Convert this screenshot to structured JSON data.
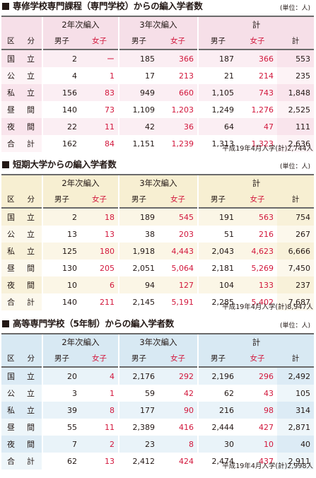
{
  "unit": "(単位：人)",
  "headers": {
    "group1": "2年次編入",
    "group2": "3年次編入",
    "group3": "計",
    "male": "男子",
    "female": "女子",
    "total": "計",
    "category_a": "区",
    "category_b": "分"
  },
  "row_labels": [
    [
      "国",
      "立"
    ],
    [
      "公",
      "立"
    ],
    [
      "私",
      "立"
    ],
    [
      "昼",
      "間"
    ],
    [
      "夜",
      "間"
    ],
    [
      "合",
      "計"
    ]
  ],
  "sections": [
    {
      "title": "専修学校専門課程（専門学校）からの編入学者数",
      "note": "平成19年4月入学(計)2,744人",
      "colors": {
        "h": "#f6dfe8",
        "c0": "#fbeef3",
        "c1": "#ffffff",
        "b0": "#f9e4ec",
        "b1": "#fdf3f6"
      },
      "rows": [
        [
          "2",
          "ー",
          "185",
          "366",
          "187",
          "366",
          "553"
        ],
        [
          "4",
          "1",
          "17",
          "213",
          "21",
          "214",
          "235"
        ],
        [
          "156",
          "83",
          "949",
          "660",
          "1,105",
          "743",
          "1,848"
        ],
        [
          "140",
          "73",
          "1,109",
          "1,203",
          "1,249",
          "1,276",
          "2,525"
        ],
        [
          "22",
          "11",
          "42",
          "36",
          "64",
          "47",
          "111"
        ],
        [
          "162",
          "84",
          "1,151",
          "1,239",
          "1,313",
          "1,323",
          "2,636"
        ]
      ]
    },
    {
      "title": "短期大学からの編入学者数",
      "note": "平成19年4月入学(計)8,947人",
      "colors": {
        "h": "#f7efd2",
        "c0": "#fbf6e6",
        "c1": "#ffffff",
        "b0": "#f8f1d9",
        "b1": "#fcf8ec"
      },
      "rows": [
        [
          "2",
          "18",
          "189",
          "545",
          "191",
          "563",
          "754"
        ],
        [
          "13",
          "13",
          "38",
          "203",
          "51",
          "216",
          "267"
        ],
        [
          "125",
          "180",
          "1,918",
          "4,443",
          "2,043",
          "4,623",
          "6,666"
        ],
        [
          "130",
          "205",
          "2,051",
          "5,064",
          "2,181",
          "5,269",
          "7,450"
        ],
        [
          "10",
          "6",
          "94",
          "127",
          "104",
          "133",
          "237"
        ],
        [
          "140",
          "211",
          "2,145",
          "5,191",
          "2,285",
          "5,402",
          "7,687"
        ]
      ]
    },
    {
      "title": "高等専門学校（5年制）からの編入学者数",
      "note": "平成19年4月入学(計)2,998人",
      "colors": {
        "h": "#d8e9f3",
        "c0": "#e9f3f9",
        "c1": "#ffffff",
        "b0": "#dcebf5",
        "b1": "#eef6fa"
      },
      "rows": [
        [
          "20",
          "4",
          "2,176",
          "292",
          "2,196",
          "296",
          "2,492"
        ],
        [
          "3",
          "1",
          "59",
          "42",
          "62",
          "43",
          "105"
        ],
        [
          "39",
          "8",
          "177",
          "90",
          "216",
          "98",
          "314"
        ],
        [
          "55",
          "11",
          "2,389",
          "416",
          "2,444",
          "427",
          "2,871"
        ],
        [
          "7",
          "2",
          "23",
          "8",
          "30",
          "10",
          "40"
        ],
        [
          "62",
          "13",
          "2,412",
          "424",
          "2,474",
          "437",
          "2,911"
        ]
      ]
    }
  ]
}
